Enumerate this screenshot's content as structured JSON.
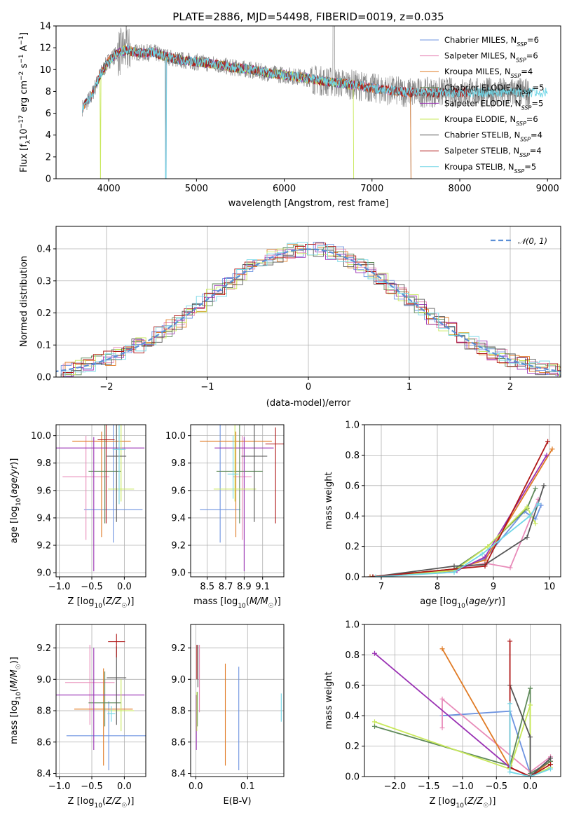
{
  "figure": {
    "title": "PLATE=2886, MJD=54498, FIBERID=0019, z=0.035"
  },
  "colors": {
    "Chabrier MILES": "#6d93e0",
    "Salpeter MILES": "#e88bb9",
    "Kroupa MILES": "#e07b25",
    "Chabrier ELODIE": "#5f8a5a",
    "Salpeter ELODIE": "#9a32b4",
    "Kroupa ELODIE": "#c8e85a",
    "Chabrier STELIB": "#555555",
    "Salpeter STELIB": "#b01818",
    "Kroupa STELIB": "#70d6e6",
    "data": "#888888",
    "gaussian": "#5b8fd6"
  },
  "chart_data": [
    {
      "id": "spectrum",
      "type": "line",
      "title": "PLATE=2886, MJD=54498, FIBERID=0019, z=0.035",
      "xlabel": "wavelength [Angstrom, rest frame]",
      "ylabel": "Flux [f_λ 10^-17 erg cm^-2 s^-1 A^-1]",
      "xlim": [
        3400,
        9150
      ],
      "ylim": [
        0,
        14
      ],
      "xticks": [
        4000,
        5000,
        6000,
        7000,
        8000,
        9000
      ],
      "yticks": [
        0,
        2,
        4,
        6,
        8,
        10,
        12,
        14
      ],
      "grid": false,
      "legend_position": "top-right",
      "series": [
        {
          "name": "Chabrier MILES",
          "nssp": "6"
        },
        {
          "name": "Salpeter MILES",
          "nssp": "6"
        },
        {
          "name": "Kroupa MILES",
          "nssp": "4"
        },
        {
          "name": "Chabrier ELODIE",
          "nssp": "5"
        },
        {
          "name": "Salpeter ELODIE",
          "nssp": "5"
        },
        {
          "name": "Kroupa ELODIE",
          "nssp": "6"
        },
        {
          "name": "Chabrier STELIB",
          "nssp": "4"
        },
        {
          "name": "Salpeter STELIB",
          "nssp": "4"
        },
        {
          "name": "Kroupa STELIB",
          "nssp": "5"
        }
      ],
      "continuum_x": [
        3700,
        3800,
        3900,
        4000,
        4100,
        4200,
        4300,
        4400,
        4500,
        4600,
        4700,
        4800,
        4900,
        5000,
        5200,
        5400,
        5600,
        5800,
        6000,
        6200,
        6400,
        6600,
        6800,
        7000,
        7200,
        7400
      ],
      "continuum_y": [
        6.5,
        7.5,
        9.5,
        10.8,
        11.5,
        11.8,
        11.6,
        11.5,
        11.6,
        11.3,
        11.1,
        10.9,
        10.8,
        10.7,
        10.5,
        10.2,
        10.0,
        9.7,
        9.5,
        9.3,
        9.0,
        8.8,
        8.6,
        8.3,
        8.1,
        7.9
      ],
      "data_x_range": [
        3700,
        8800
      ],
      "model_x_ranges": {
        "Chabrier MILES": [
          3700,
          7440
        ],
        "Salpeter MILES": [
          3700,
          7440
        ],
        "Kroupa MILES": [
          3700,
          7440
        ],
        "Chabrier ELODIE": [
          3900,
          6800
        ],
        "Salpeter ELODIE": [
          3900,
          6800
        ],
        "Kroupa ELODIE": [
          3900,
          6800
        ],
        "Chabrier STELIB": [
          3700,
          8800
        ],
        "Salpeter STELIB": [
          3700,
          8100
        ],
        "Kroupa STELIB": [
          3700,
          9000
        ]
      }
    },
    {
      "id": "residuals",
      "type": "histogram",
      "xlabel": "(data-model)/error",
      "ylabel": "Normed distribution",
      "xlim": [
        -2.5,
        2.5
      ],
      "ylim": [
        0,
        0.47
      ],
      "xticks": [
        -2,
        -1,
        0,
        1,
        2
      ],
      "yticks": [
        0.0,
        0.1,
        0.2,
        0.3,
        0.4
      ],
      "grid": true,
      "legend_position": "top-right",
      "reference_curve": {
        "name": "𝒩(0, 1)",
        "mean": 0,
        "sigma": 1
      },
      "bin_width": 0.1
    },
    {
      "id": "age-vs-Z",
      "type": "scatter",
      "xlabel": "Z [log10(Z/Z☉)]",
      "ylabel": "age [log10(age/yr)]",
      "xlim": [
        -1.05,
        0.33
      ],
      "ylim": [
        8.97,
        10.08
      ],
      "xticks": [
        -1.0,
        -0.5,
        0.0
      ],
      "yticks": [
        9.0,
        9.2,
        9.4,
        9.6,
        9.8,
        10.0
      ],
      "grid": true,
      "points": [
        {
          "series": "Chabrier MILES",
          "x": -0.17,
          "xerr": 0.45,
          "y": 9.46,
          "yerr": [
            0.24,
            0.64
          ]
        },
        {
          "series": "Salpeter MILES",
          "x": -0.59,
          "xerr": 0.36,
          "y": 9.7,
          "yerr": [
            0.46,
            0.3
          ]
        },
        {
          "series": "Kroupa MILES",
          "x": -0.35,
          "xerr": 0.45,
          "y": 9.96,
          "yerr": [
            0.7,
            0.07
          ]
        },
        {
          "series": "Chabrier ELODIE",
          "x": -0.3,
          "xerr": 0.25,
          "y": 9.74,
          "yerr": [
            0.38,
            0.37
          ]
        },
        {
          "series": "Salpeter ELODIE",
          "x": -0.47,
          "xerr": 0.78,
          "y": 9.91,
          "yerr": [
            0.9,
            0.08
          ]
        },
        {
          "series": "Kroupa ELODIE",
          "x": -0.05,
          "xerr": 0.2,
          "y": 9.61,
          "yerr": [
            0.09,
            0.52
          ]
        },
        {
          "series": "Chabrier STELIB",
          "x": -0.12,
          "xerr": 0.15,
          "y": 9.85,
          "yerr": [
            0.48,
            0.25
          ]
        },
        {
          "series": "Salpeter STELIB",
          "x": -0.28,
          "xerr": 0.13,
          "y": 9.97,
          "yerr": [
            0.61,
            0.13
          ]
        },
        {
          "series": "Kroupa STELIB",
          "x": -0.08,
          "xerr": 0.1,
          "y": 9.9,
          "yerr": [
            0.4,
            0.22
          ]
        }
      ]
    },
    {
      "id": "age-vs-mass",
      "type": "scatter",
      "xlabel": "mass [log10(M/M☉)]",
      "ylabel": "",
      "xlim": [
        8.32,
        9.33
      ],
      "ylim": [
        8.97,
        10.08
      ],
      "xticks": [
        8.5,
        8.7,
        8.9,
        9.1
      ],
      "yticks": [
        9.0,
        9.2,
        9.4,
        9.6,
        9.8,
        10.0
      ],
      "grid": true,
      "points": [
        {
          "series": "Chabrier MILES",
          "x": 8.64,
          "xerr": 0.22,
          "y": 9.46,
          "yerr": [
            0.24,
            0.64
          ]
        },
        {
          "series": "Salpeter MILES",
          "x": 8.88,
          "xerr": 0.1,
          "y": 9.7,
          "yerr": [
            0.46,
            0.3
          ]
        },
        {
          "series": "Kroupa MILES",
          "x": 8.81,
          "xerr": 0.39,
          "y": 9.96,
          "yerr": [
            0.7,
            0.07
          ]
        },
        {
          "series": "Chabrier ELODIE",
          "x": 8.85,
          "xerr": 0.25,
          "y": 9.74,
          "yerr": [
            0.38,
            0.37
          ]
        },
        {
          "series": "Salpeter ELODIE",
          "x": 8.9,
          "xerr": 0.32,
          "y": 9.91,
          "yerr": [
            0.9,
            0.08
          ]
        },
        {
          "series": "Kroupa ELODIE",
          "x": 8.8,
          "xerr": 0.23,
          "y": 9.61,
          "yerr": [
            0.09,
            0.52
          ]
        },
        {
          "series": "Chabrier STELIB",
          "x": 9.01,
          "xerr": 0.14,
          "y": 9.85,
          "yerr": [
            0.48,
            0.25
          ]
        },
        {
          "series": "Salpeter STELIB",
          "x": 9.24,
          "xerr": 0.11,
          "y": 9.94,
          "yerr": [
            0.58,
            0.12
          ]
        },
        {
          "series": "Kroupa STELIB",
          "x": 8.78,
          "xerr": 0.06,
          "y": 9.72,
          "yerr": [
            0.18,
            0.28
          ]
        }
      ]
    },
    {
      "id": "mass-weight-vs-age",
      "type": "line",
      "xlabel": "age  [log10(age/yr)]",
      "ylabel": "mass weight",
      "xlim": [
        6.7,
        10.2
      ],
      "ylim": [
        0,
        1.0
      ],
      "xticks": [
        7,
        8,
        9,
        10
      ],
      "yticks": [
        0.0,
        0.2,
        0.4,
        0.6,
        0.8,
        1.0
      ],
      "grid": true,
      "series": [
        {
          "name": "Chabrier MILES",
          "x": [
            6.8,
            8.3,
            8.85,
            9.55,
            9.75,
            9.85
          ],
          "y": [
            0.0,
            0.04,
            0.12,
            0.43,
            0.38,
            0.47
          ]
        },
        {
          "name": "Salpeter MILES",
          "x": [
            6.8,
            8.3,
            8.85,
            9.3,
            9.8
          ],
          "y": [
            0.0,
            0.05,
            0.09,
            0.06,
            0.51
          ]
        },
        {
          "name": "Kroupa MILES",
          "x": [
            6.8,
            8.3,
            8.85,
            10.05
          ],
          "y": [
            0.0,
            0.05,
            0.11,
            0.84
          ]
        },
        {
          "name": "Chabrier ELODIE",
          "x": [
            6.85,
            8.3,
            8.9,
            9.6,
            9.75
          ],
          "y": [
            0.0,
            0.05,
            0.2,
            0.45,
            0.58
          ]
        },
        {
          "name": "Salpeter ELODIE",
          "x": [
            6.85,
            8.35,
            8.85,
            9.95
          ],
          "y": [
            0.0,
            0.04,
            0.13,
            0.8
          ]
        },
        {
          "name": "Kroupa ELODIE",
          "x": [
            6.85,
            8.3,
            8.9,
            9.6,
            9.75
          ],
          "y": [
            0.0,
            0.04,
            0.2,
            0.46,
            0.35
          ]
        },
        {
          "name": "Chabrier STELIB",
          "x": [
            6.85,
            8.3,
            8.85,
            9.6,
            9.9
          ],
          "y": [
            0.0,
            0.07,
            0.08,
            0.26,
            0.6
          ]
        },
        {
          "name": "Salpeter STELIB",
          "x": [
            6.85,
            8.85,
            9.97
          ],
          "y": [
            0.0,
            0.07,
            0.89
          ]
        },
        {
          "name": "Kroupa STELIB",
          "x": [
            6.9,
            8.3,
            8.8,
            9.65,
            9.8
          ],
          "y": [
            0.0,
            0.03,
            0.15,
            0.4,
            0.48
          ]
        }
      ]
    },
    {
      "id": "mass-vs-Z",
      "type": "scatter",
      "xlabel": "Z [log10(Z/Z☉)]",
      "ylabel": "mass [log10(M/M☉)]",
      "xlim": [
        -1.05,
        0.33
      ],
      "ylim": [
        8.38,
        9.35
      ],
      "xticks": [
        -1.0,
        -0.5,
        0.0
      ],
      "yticks": [
        8.4,
        8.6,
        8.8,
        9.0,
        9.2
      ],
      "grid": true,
      "points": [
        {
          "series": "Chabrier MILES",
          "x": -0.24,
          "xerr": 0.65,
          "y": 8.64,
          "yerr": [
            0.22,
            0.22
          ]
        },
        {
          "series": "Salpeter MILES",
          "x": -0.53,
          "xerr": 0.38,
          "y": 8.98,
          "yerr": [
            0.27,
            0.24
          ]
        },
        {
          "series": "Kroupa MILES",
          "x": -0.32,
          "xerr": 0.45,
          "y": 8.81,
          "yerr": [
            0.36,
            0.26
          ]
        },
        {
          "series": "Chabrier ELODIE",
          "x": -0.3,
          "xerr": 0.25,
          "y": 8.85,
          "yerr": [
            0.15,
            0.2
          ]
        },
        {
          "series": "Salpeter ELODIE",
          "x": -0.47,
          "xerr": 0.78,
          "y": 8.9,
          "yerr": [
            0.35,
            0.3
          ]
        },
        {
          "series": "Kroupa ELODIE",
          "x": -0.05,
          "xerr": 0.2,
          "y": 8.8,
          "yerr": [
            0.13,
            0.2
          ]
        },
        {
          "series": "Chabrier STELIB",
          "x": -0.12,
          "xerr": 0.15,
          "y": 9.01,
          "yerr": [
            0.3,
            0.2
          ]
        },
        {
          "series": "Salpeter STELIB",
          "x": -0.12,
          "xerr": 0.13,
          "y": 9.24,
          "yerr": [
            0.1,
            0.05
          ]
        },
        {
          "series": "Kroupa STELIB",
          "x": -0.2,
          "xerr": 0.06,
          "y": 8.78,
          "yerr": [
            0.05,
            0.05
          ]
        }
      ]
    },
    {
      "id": "mass-vs-EBV",
      "type": "scatter",
      "xlabel": "E(B-V)",
      "ylabel": "",
      "xlim": [
        -0.01,
        0.17
      ],
      "ylim": [
        8.38,
        9.35
      ],
      "xticks": [
        0.0,
        0.1
      ],
      "yticks": [
        8.4,
        8.6,
        8.8,
        9.0,
        9.2
      ],
      "grid": true,
      "points": [
        {
          "series": "Chabrier MILES",
          "x": 0.083,
          "y": 8.75,
          "yerr": [
            0.33,
            0.33
          ]
        },
        {
          "series": "Salpeter MILES",
          "x": 0.007,
          "y": 8.99,
          "yerr": [
            0.2,
            0.23
          ]
        },
        {
          "series": "Kroupa MILES",
          "x": 0.057,
          "y": 8.78,
          "yerr": [
            0.33,
            0.32
          ]
        },
        {
          "series": "Chabrier ELODIE",
          "x": 0.003,
          "y": 8.8,
          "yerr": [
            0.1,
            0.12
          ]
        },
        {
          "series": "Salpeter ELODIE",
          "x": 0.001,
          "y": 8.7,
          "yerr": [
            0.15,
            0.2
          ]
        },
        {
          "series": "Kroupa ELODIE",
          "x": 0.002,
          "y": 8.77,
          "yerr": [
            0.1,
            0.15
          ]
        },
        {
          "series": "Chabrier STELIB",
          "x": 0.004,
          "y": 9.05,
          "yerr": [
            0.1,
            0.17
          ]
        },
        {
          "series": "Salpeter STELIB",
          "x": 0.002,
          "y": 9.1,
          "yerr": [
            0.1,
            0.12
          ]
        },
        {
          "series": "Kroupa STELIB",
          "x": 0.165,
          "y": 8.82,
          "yerr": [
            0.09,
            0.09
          ]
        }
      ]
    },
    {
      "id": "mass-weight-vs-Z",
      "type": "line",
      "xlabel": "Z [log10(Z/Z☉)]",
      "ylabel": "mass weight",
      "xlim": [
        -2.45,
        0.45
      ],
      "ylim": [
        0,
        1.0
      ],
      "xticks": [
        -2.0,
        -1.5,
        -1.0,
        -0.5,
        0.0
      ],
      "yticks": [
        0.0,
        0.2,
        0.4,
        0.6,
        0.8,
        1.0
      ],
      "grid": true,
      "series": [
        {
          "name": "Chabrier MILES",
          "x": [
            -1.3,
            -0.3,
            0.0,
            0.3
          ],
          "y": [
            0.4,
            0.43,
            0.02,
            0.1
          ]
        },
        {
          "name": "Salpeter MILES",
          "x": [
            -1.3,
            -1.3,
            0.0,
            0.3
          ],
          "y": [
            0.32,
            0.51,
            0.03,
            0.13
          ]
        },
        {
          "name": "Kroupa MILES",
          "x": [
            -1.3,
            -0.3,
            0.0,
            0.3
          ],
          "y": [
            0.84,
            0.06,
            0.0,
            0.1
          ]
        },
        {
          "name": "Chabrier ELODIE",
          "x": [
            -2.3,
            -0.3,
            0.0,
            0.0,
            0.3
          ],
          "y": [
            0.33,
            0.07,
            0.58,
            0.02,
            0.1
          ]
        },
        {
          "name": "Salpeter ELODIE",
          "x": [
            -2.3,
            -0.3,
            0.0,
            0.3
          ],
          "y": [
            0.81,
            0.06,
            0.0,
            0.12
          ]
        },
        {
          "name": "Kroupa ELODIE",
          "x": [
            -2.3,
            -0.3,
            0.0,
            0.0,
            0.3
          ],
          "y": [
            0.36,
            0.05,
            0.47,
            0.0,
            0.06
          ]
        },
        {
          "name": "Chabrier STELIB",
          "x": [
            -0.3,
            0.0,
            0.0,
            0.3
          ],
          "y": [
            0.6,
            0.26,
            0.0,
            0.12
          ]
        },
        {
          "name": "Salpeter STELIB",
          "x": [
            -0.3,
            -0.3,
            0.0,
            0.3
          ],
          "y": [
            0.89,
            0.06,
            0.0,
            0.08
          ]
        },
        {
          "name": "Kroupa STELIB",
          "x": [
            -0.3,
            -0.3,
            0.0,
            0.3
          ],
          "y": [
            0.48,
            0.03,
            0.0,
            0.05
          ]
        }
      ]
    }
  ]
}
